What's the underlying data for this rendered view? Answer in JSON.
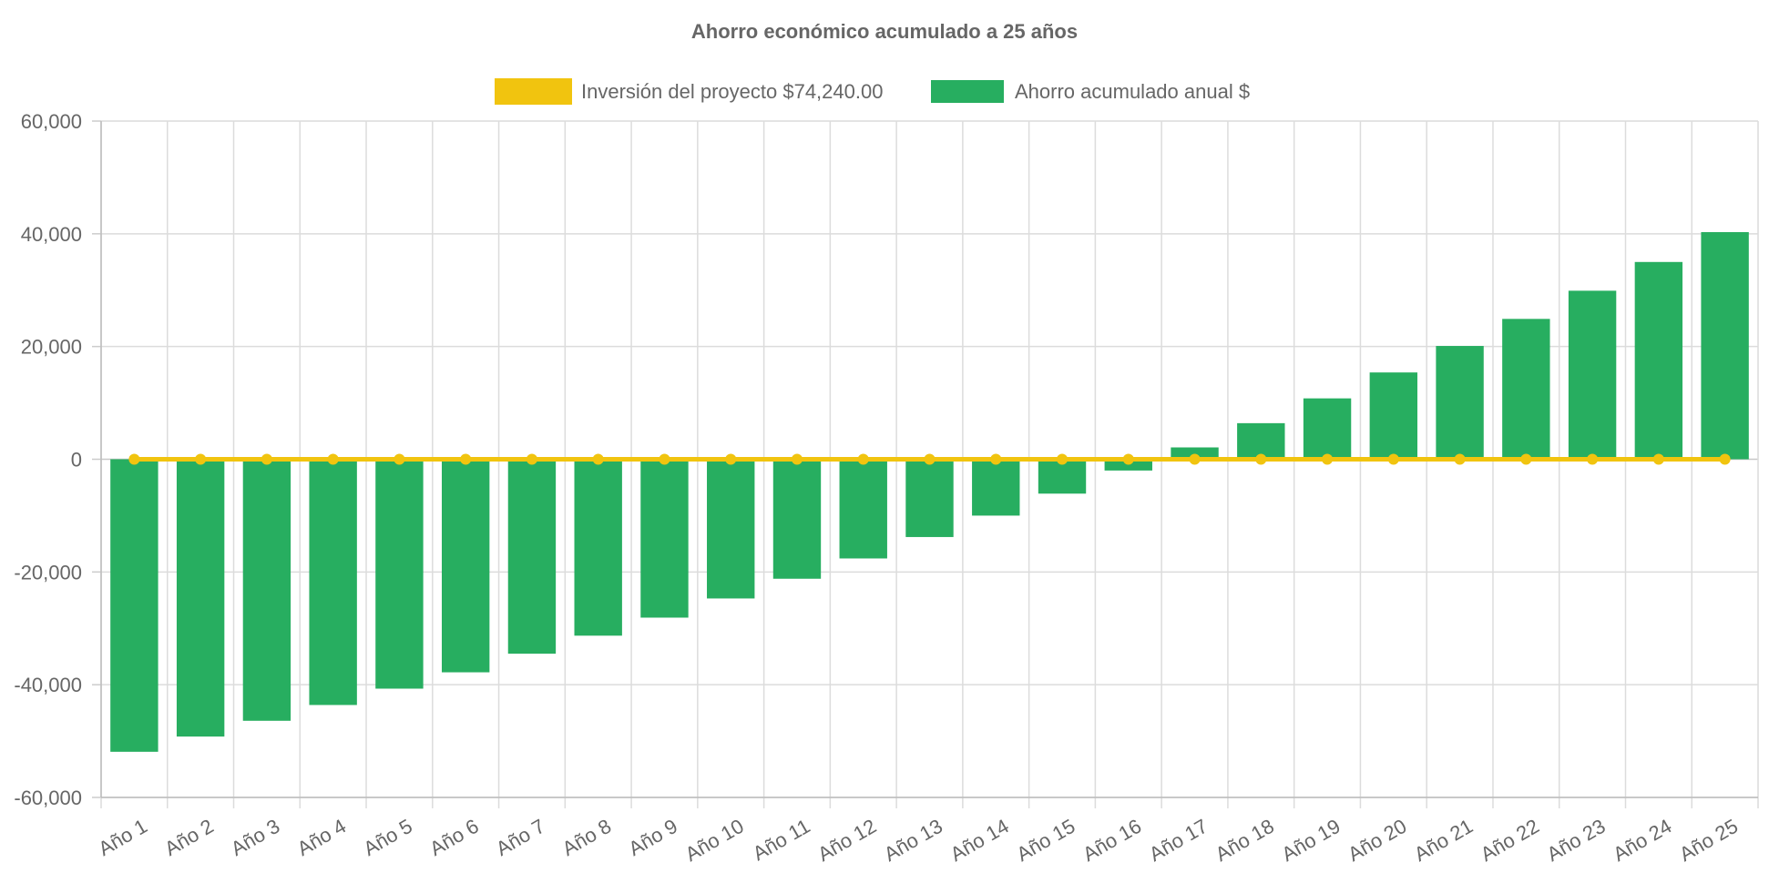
{
  "chart_data": {
    "type": "bar",
    "title": "Ahorro económico acumulado a 25 años",
    "xlabel": "",
    "ylabel": "",
    "ylim": [
      -60000,
      60000
    ],
    "yticks": [
      60000,
      40000,
      20000,
      0,
      -20000,
      -40000,
      -60000
    ],
    "ytick_labels": [
      "60,000",
      "40,000",
      "20,000",
      "0",
      "-20,000",
      "-40,000",
      "-60,000"
    ],
    "grid": true,
    "legend_position": "top",
    "categories": [
      "Año 1",
      "Año 2",
      "Año 3",
      "Año 4",
      "Año 5",
      "Año 6",
      "Año 7",
      "Año 8",
      "Año 9",
      "Año 10",
      "Año 11",
      "Año 12",
      "Año 13",
      "Año 14",
      "Año 15",
      "Año 16",
      "Año 17",
      "Año 18",
      "Año 19",
      "Año 20",
      "Año 21",
      "Año 22",
      "Año 23",
      "Año 24",
      "Año 25"
    ],
    "series": [
      {
        "name": "Inversión del proyecto $74,240.00",
        "type": "line",
        "color": "#f1c40f",
        "values": [
          0,
          0,
          0,
          0,
          0,
          0,
          0,
          0,
          0,
          0,
          0,
          0,
          0,
          0,
          0,
          0,
          0,
          0,
          0,
          0,
          0,
          0,
          0,
          0,
          0
        ]
      },
      {
        "name": "Ahorro acumulado anual $",
        "type": "bar",
        "color": "#27ae60",
        "values": [
          -51900,
          -49200,
          -46400,
          -43600,
          -40700,
          -37800,
          -34500,
          -31300,
          -28100,
          -24700,
          -21200,
          -17600,
          -13800,
          -10000,
          -6100,
          -2000,
          2100,
          6400,
          10800,
          15400,
          20100,
          24900,
          29900,
          35000,
          40300
        ]
      }
    ]
  }
}
